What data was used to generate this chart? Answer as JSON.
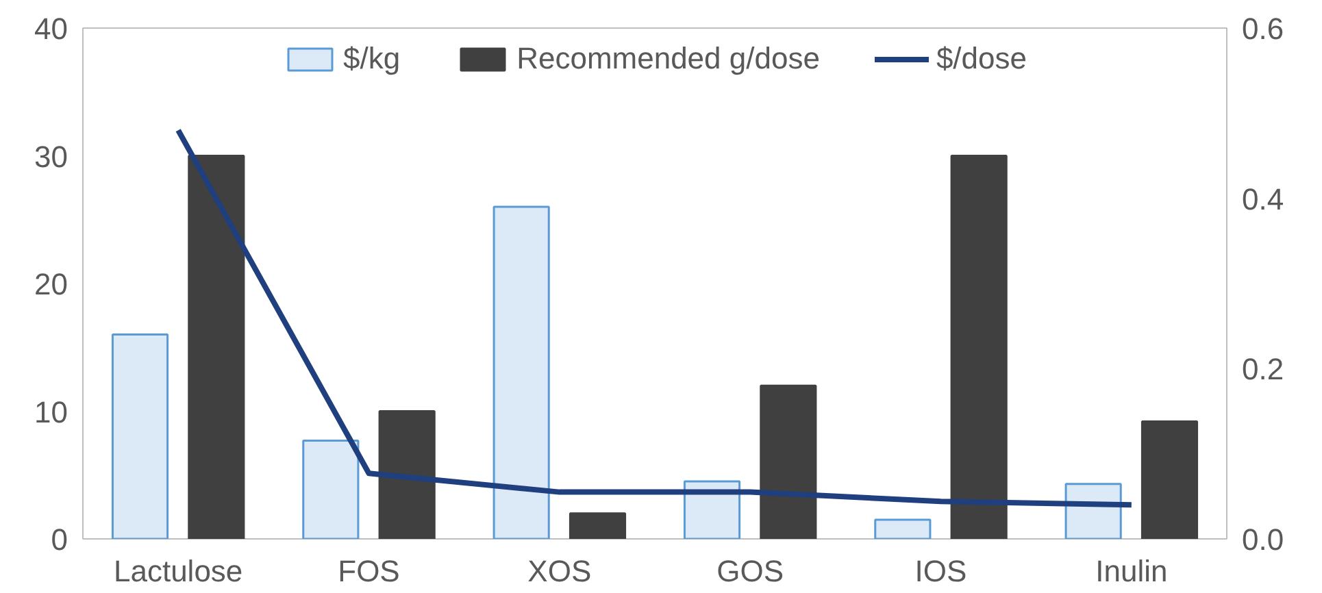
{
  "chart_data": {
    "type": "bar",
    "categories": [
      "Lactulose",
      "FOS",
      "XOS",
      "GOS",
      "IOS",
      "Inulin"
    ],
    "series": [
      {
        "name": "$/kg",
        "color": "#dce9f6",
        "values": [
          16,
          7.7,
          26,
          4.5,
          1.5,
          4.3
        ]
      },
      {
        "name": "Recommended g/dose",
        "color": "#404040",
        "values": [
          30,
          10,
          2,
          12,
          30,
          9.2
        ]
      },
      {
        "name": "$/dose",
        "type": "line",
        "axis": "y2",
        "color": "#203f7e",
        "values": [
          0.48,
          0.077,
          0.055,
          0.055,
          0.044,
          0.04
        ]
      }
    ],
    "ylim": [
      0,
      40
    ],
    "yticks": [
      0,
      10,
      20,
      30,
      40
    ],
    "y2lim": [
      0,
      0.6
    ],
    "y2ticks": [
      {
        "value": 0,
        "label": "0.0"
      },
      {
        "value": 0.2,
        "label": "0.2"
      },
      {
        "value": 0.4,
        "label": "0.4"
      },
      {
        "value": 0.6,
        "label": "0.6"
      }
    ],
    "grid": false,
    "legend": "top",
    "marker": "none",
    "line_style": "solid"
  }
}
